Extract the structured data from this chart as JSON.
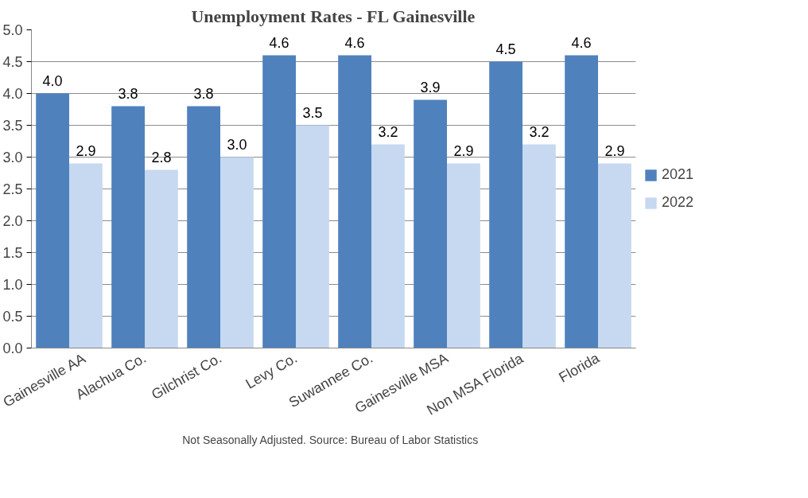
{
  "chart_data": {
    "type": "bar",
    "title": "Unemployment Rates - FL Gainesville",
    "categories": [
      "Gainesville AA",
      "Alachua Co.",
      "Gilchrist Co.",
      "Levy Co.",
      "Suwannee Co.",
      "Gainesville MSA",
      "Non MSA Florida",
      "Florida"
    ],
    "series": [
      {
        "name": "2021",
        "color": "#4f81bd",
        "values": [
          4.0,
          3.8,
          3.8,
          4.6,
          4.6,
          3.9,
          4.5,
          4.6
        ],
        "value_labels": [
          "4.0",
          "3.8",
          "3.8",
          "4.6",
          "4.6",
          "3.9",
          "4.5",
          "4.6"
        ]
      },
      {
        "name": "2022",
        "color": "#c6d9f1",
        "values": [
          2.9,
          2.8,
          3.0,
          3.5,
          3.2,
          2.9,
          3.2,
          2.9
        ],
        "value_labels": [
          "2.9",
          "2.8",
          "3.0",
          "3.5",
          "3.2",
          "2.9",
          "3.2",
          "2.9"
        ]
      }
    ],
    "ylim": [
      0,
      5
    ],
    "yticks": [
      {
        "value": 0,
        "label": "0.0"
      },
      {
        "value": 0.5,
        "label": "0.5"
      },
      {
        "value": 1,
        "label": "1.0"
      },
      {
        "value": 1.5,
        "label": "1.5"
      },
      {
        "value": 2,
        "label": "2.0"
      },
      {
        "value": 2.5,
        "label": "2.5"
      },
      {
        "value": 3,
        "label": "3.0"
      },
      {
        "value": 3.5,
        "label": "3.5"
      },
      {
        "value": 4,
        "label": "4.0"
      },
      {
        "value": 4.5,
        "label": "4.5"
      },
      {
        "value": 5,
        "label": "5.0"
      }
    ],
    "grid": "y",
    "legend": "right",
    "annotations": [
      "Not Seasonally Adjusted.   Source: Bureau of Labor Statistics"
    ]
  }
}
